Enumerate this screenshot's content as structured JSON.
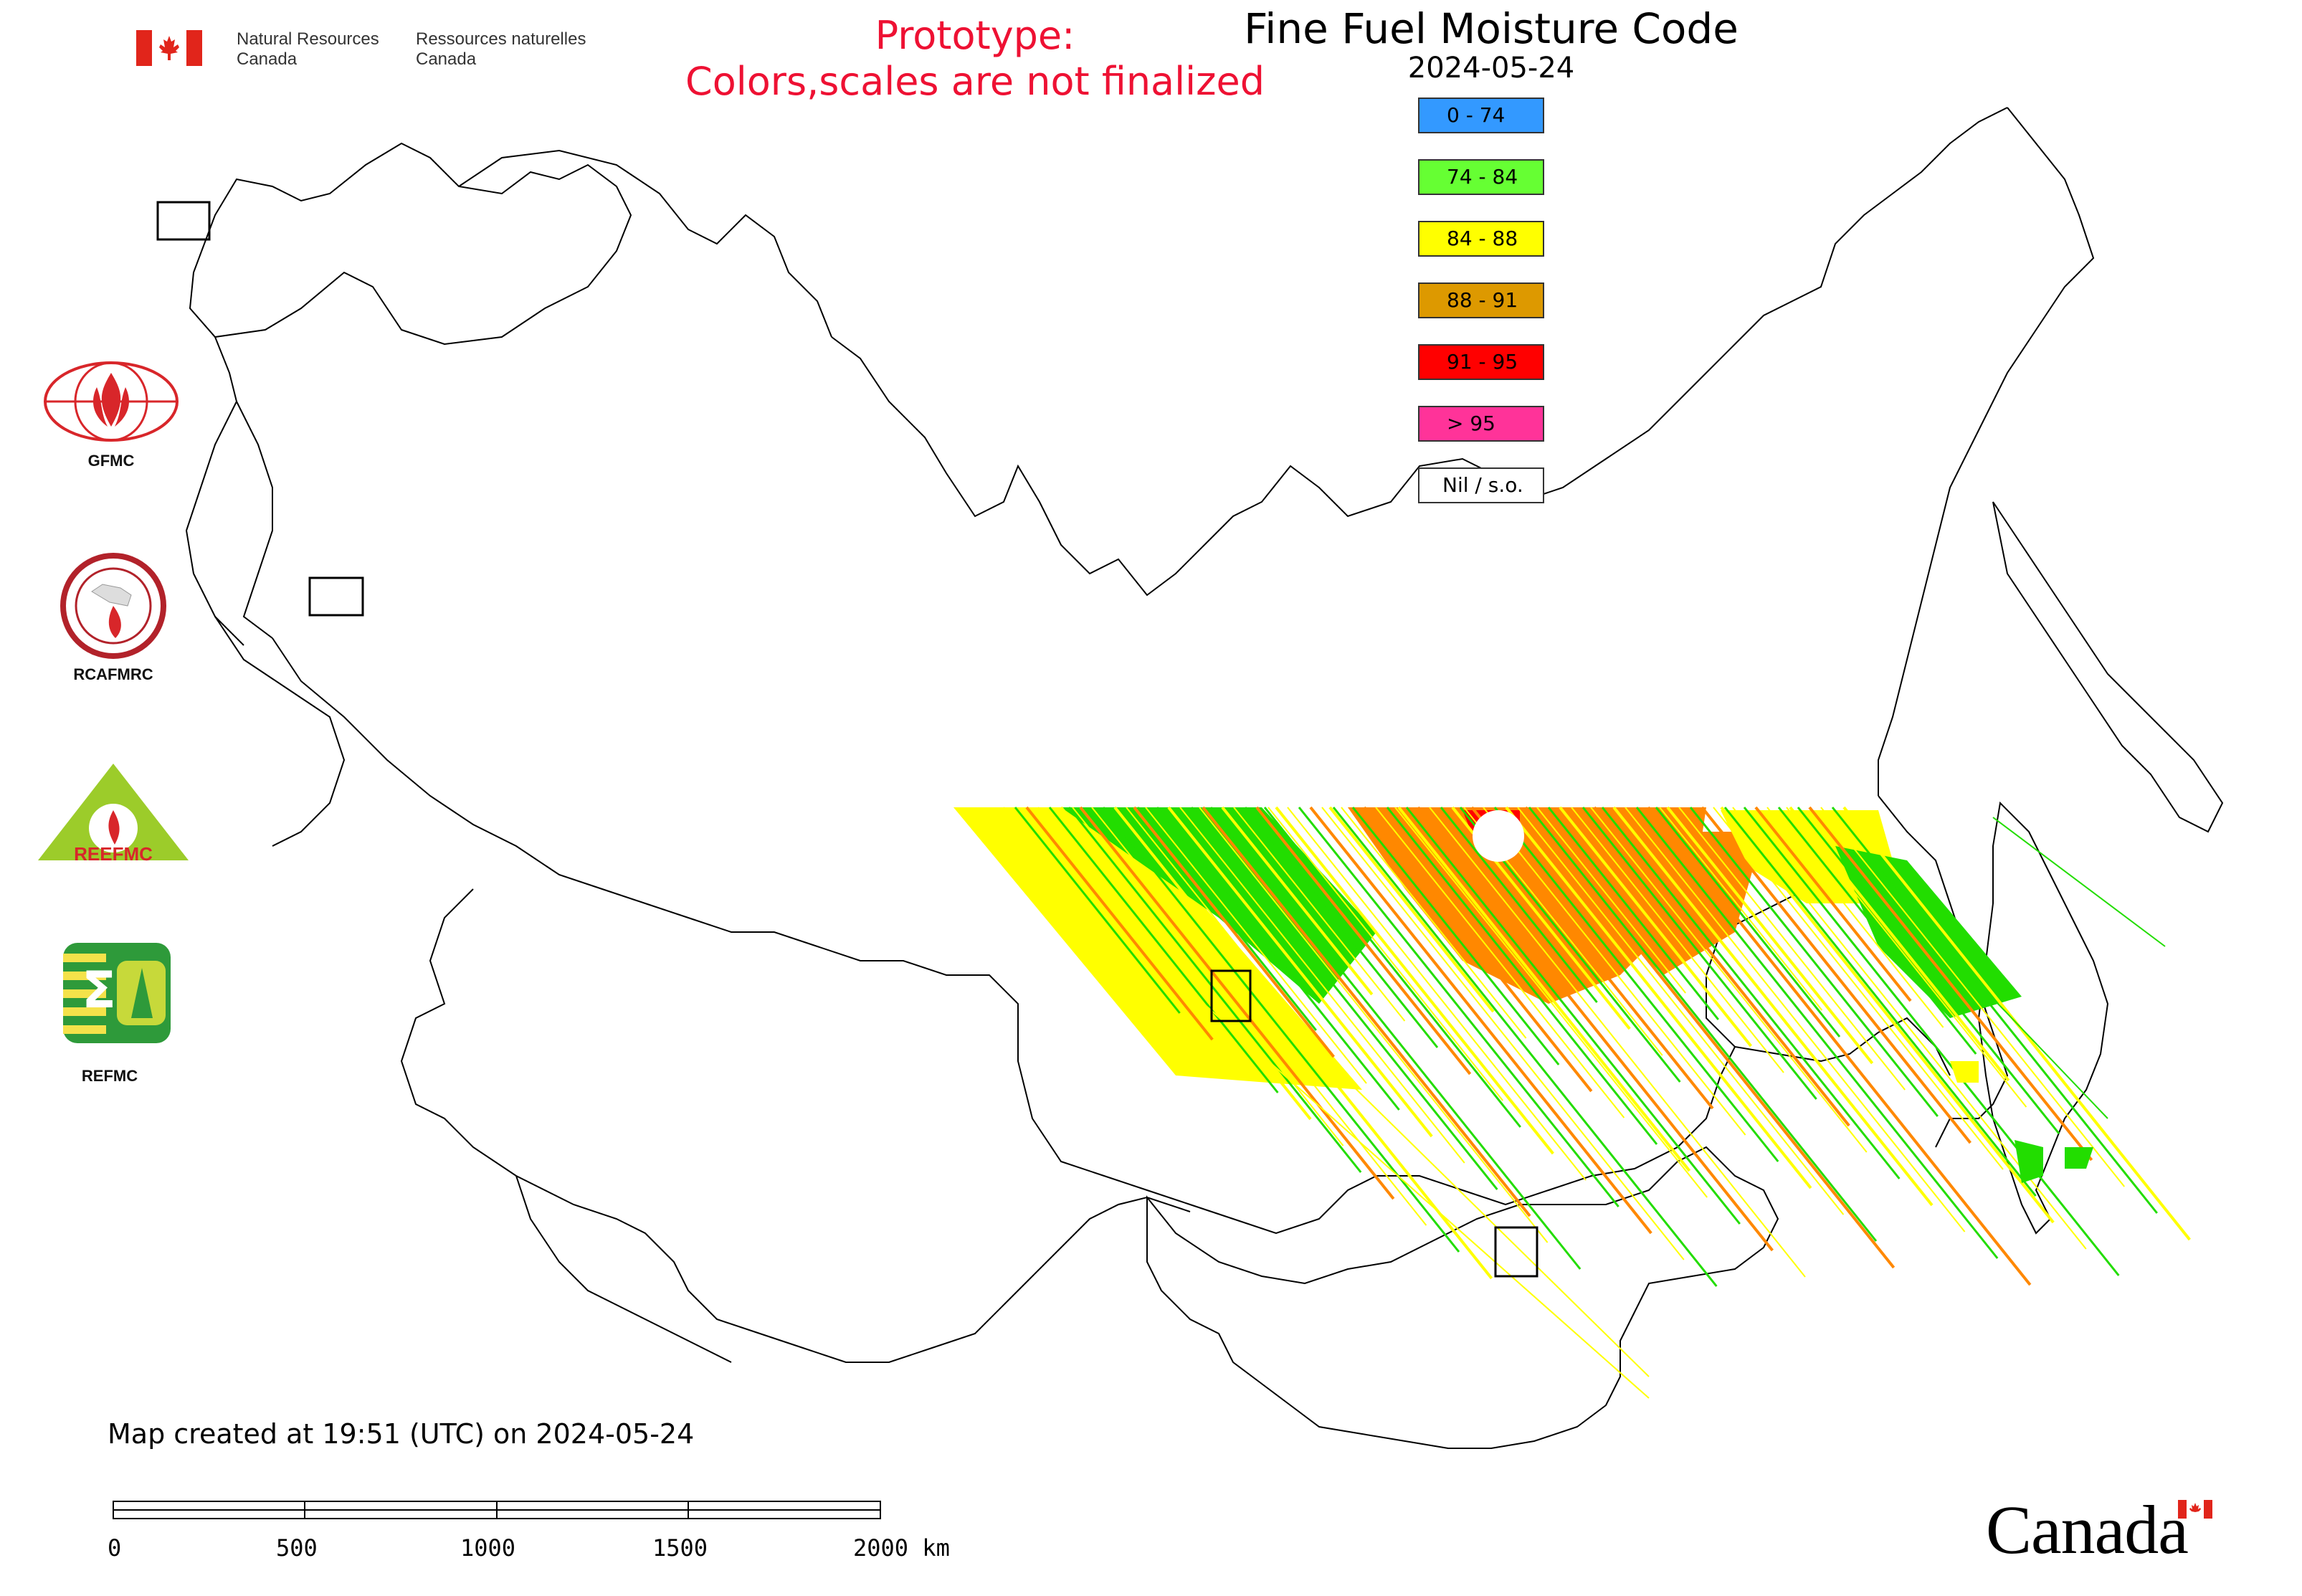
{
  "header": {
    "org_en_1": "Natural Resources",
    "org_en_2": "Canada",
    "org_fr_1": "Ressources naturelles",
    "org_fr_2": "Canada",
    "prototype_line1": "Prototype:",
    "prototype_line2": "Colors,scales are not finalized",
    "map_title": "Fine Fuel Moisture Code",
    "map_date": "2024-05-24"
  },
  "legend": [
    {
      "label": "0 - 74",
      "color": "#3399ff"
    },
    {
      "label": "74 - 84",
      "color": "#66ff33"
    },
    {
      "label": "84 - 88",
      "color": "#ffff00"
    },
    {
      "label": "88 - 91",
      "color": "#dd9900"
    },
    {
      "label": "91 - 95",
      "color": "#ff0000"
    },
    {
      "label": "> 95",
      "color": "#ff3399"
    },
    {
      "label": "Nil / s.o.",
      "color": "#ffffff"
    }
  ],
  "partners": [
    {
      "name": "GFMC",
      "icon": "gfmc-logo-icon"
    },
    {
      "name": "RCAFMRC",
      "icon": "rcafmrc-logo-icon"
    },
    {
      "name": "REEFMC",
      "icon": "reefmc-logo-icon"
    },
    {
      "name": "REFMC",
      "icon": "refmc-logo-icon"
    }
  ],
  "footer": {
    "created": "Map created at 19:51 (UTC) on 2024-05-24",
    "scale_ticks": [
      "0",
      "500",
      "1000",
      "1500",
      "2000 km"
    ],
    "wordmark": "Canada"
  },
  "colors": {
    "green": "#22dd00",
    "yellow": "#ffff00",
    "orange": "#ff8800",
    "red": "#ff0000",
    "prototype_text": "#ee1133"
  }
}
